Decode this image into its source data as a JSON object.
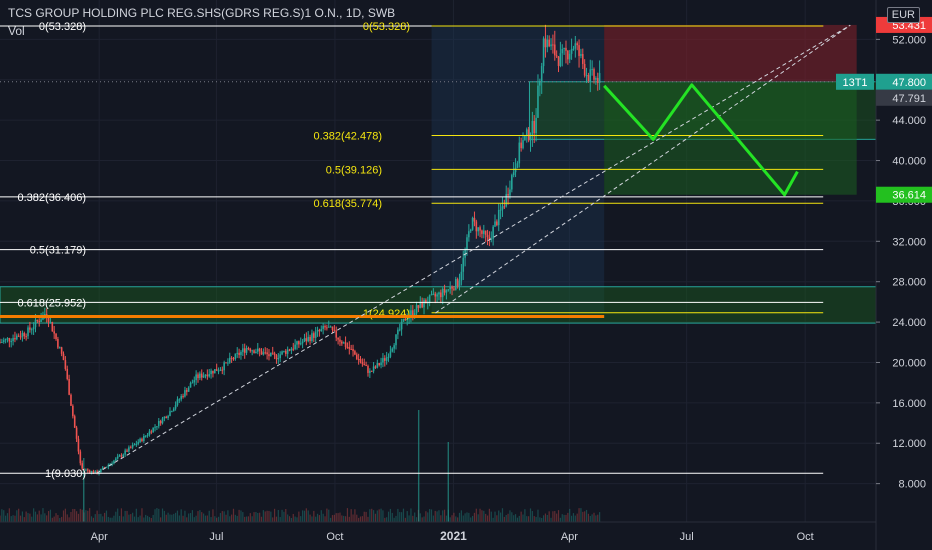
{
  "header": {
    "title": "TCS GROUP HOLDING PLC REG.SHS(GDRS REG.S)1 O.N., 1D, SWB",
    "volume_label": "Vol",
    "currency": "EUR"
  },
  "colors": {
    "background": "#131722",
    "up": "#26a69a",
    "down": "#ef5350",
    "fib_white": "#ffffff",
    "fib_yellow": "#f5e60f",
    "zone_green": "#1b5e20",
    "zone_red": "#7b1f2a",
    "trend_dashed": "#d1d4dc",
    "projection": "#24e324",
    "support_orange": "#f57c00"
  },
  "chart_data": {
    "type": "candlestick",
    "y_axis": {
      "ticks": [
        "52.000",
        "48.000",
        "44.000",
        "40.000",
        "36.000",
        "32.000",
        "28.000",
        "24.000",
        "20.000",
        "16.000",
        "12.000",
        "8.000"
      ],
      "tick_values": [
        52,
        48,
        44,
        40,
        36,
        32,
        28,
        24,
        20,
        16,
        12,
        8
      ],
      "range": [
        4.2,
        55.9
      ]
    },
    "x_axis": {
      "labels": [
        "Apr",
        "Jul",
        "Oct",
        "2021",
        "Apr",
        "Jul",
        "Oct"
      ],
      "dates": [
        "2020-04-01",
        "2020-07-01",
        "2020-10-01",
        "2021-01-01",
        "2021-04-01",
        "2021-07-01",
        "2021-10-01"
      ],
      "range": [
        "2020-01-15",
        "2021-11-25"
      ]
    },
    "price_path": [
      [
        "2020-01-15",
        22.0
      ],
      [
        "2020-02-05",
        23.0
      ],
      [
        "2020-02-20",
        25.0
      ],
      [
        "2020-03-05",
        20.0
      ],
      [
        "2020-03-18",
        9.5
      ],
      [
        "2020-03-30",
        9.03
      ],
      [
        "2020-04-15",
        10.5
      ],
      [
        "2020-05-05",
        12.5
      ],
      [
        "2020-05-25",
        15.0
      ],
      [
        "2020-06-15",
        18.5
      ],
      [
        "2020-07-05",
        19.5
      ],
      [
        "2020-07-25",
        21.5
      ],
      [
        "2020-08-15",
        20.5
      ],
      [
        "2020-09-05",
        22.0
      ],
      [
        "2020-09-25",
        23.5
      ],
      [
        "2020-10-15",
        21.0
      ],
      [
        "2020-10-28",
        19.0
      ],
      [
        "2020-11-10",
        20.5
      ],
      [
        "2020-11-25",
        24.5
      ],
      [
        "2020-12-10",
        26.0
      ],
      [
        "2020-12-25",
        27.0
      ],
      [
        "2021-01-05",
        28.0
      ],
      [
        "2021-01-15",
        34.0
      ],
      [
        "2021-01-28",
        32.0
      ],
      [
        "2021-02-10",
        36.0
      ],
      [
        "2021-02-22",
        41.5
      ],
      [
        "2021-03-05",
        43.5
      ],
      [
        "2021-03-12",
        52.0
      ],
      [
        "2021-03-25",
        50.0
      ],
      [
        "2021-04-05",
        51.5
      ],
      [
        "2021-04-15",
        48.5
      ],
      [
        "2021-04-25",
        47.8
      ]
    ],
    "last_price_label": "47.791",
    "price_labels": [
      {
        "text": "53.431",
        "value": 53.431,
        "color": "#ef3b3b"
      },
      {
        "text": "47.800",
        "value": 47.8,
        "color": "#1fa08f",
        "tag": "13T1"
      },
      {
        "text": "36.614",
        "value": 36.614,
        "color": "#23c01f"
      }
    ],
    "volume_spikes": [
      [
        "2020-12-05",
        0.7
      ],
      [
        "2020-12-28",
        0.5
      ],
      [
        "2020-03-20",
        0.4
      ]
    ],
    "fib_white": {
      "from_date": "2020-01-15",
      "to_date": "2021-10-15",
      "levels": [
        {
          "label": "0(53.328)",
          "value": 53.328
        },
        {
          "label": "0.382(36.406)",
          "value": 36.406
        },
        {
          "label": "0.5(31.179)",
          "value": 31.179
        },
        {
          "label": "0.618(25.952)",
          "value": 25.952
        },
        {
          "label": "1(9.030)",
          "value": 9.03
        }
      ]
    },
    "fib_yellow": {
      "from_date": "2020-12-15",
      "to_date": "2021-10-15",
      "levels": [
        {
          "label": "0(53.328)",
          "value": 53.328
        },
        {
          "label": "0.382(42.478)",
          "value": 42.478
        },
        {
          "label": "0.5(39.126)",
          "value": 39.126
        },
        {
          "label": "0.618(35.774)",
          "value": 35.774
        },
        {
          "label": "1(24.924)",
          "value": 24.924
        }
      ]
    },
    "zones": [
      {
        "from": "2020-01-15",
        "to": "2021-11-25",
        "top": 27.5,
        "bottom": 23.9,
        "kind": "support"
      },
      {
        "from": "2021-03-01",
        "to": "2021-11-25",
        "top": 47.8,
        "bottom": 42.1,
        "kind": "support"
      },
      {
        "from": "2021-04-28",
        "to": "2021-11-10",
        "top": 47.8,
        "bottom": 36.614,
        "kind": "target"
      },
      {
        "from": "2021-04-28",
        "to": "2021-11-10",
        "top": 53.431,
        "bottom": 47.8,
        "kind": "stop"
      }
    ],
    "trend_lines": [
      [
        [
          "2020-03-30",
          9.03
        ],
        [
          "2021-11-05",
          53.4
        ]
      ],
      [
        [
          "2020-12-18",
          24.9
        ],
        [
          "2021-11-05",
          53.4
        ]
      ]
    ],
    "projection_path": [
      [
        "2021-04-28",
        47.4
      ],
      [
        "2021-06-05",
        42.1
      ],
      [
        "2021-07-05",
        47.5
      ],
      [
        "2021-09-15",
        36.614
      ],
      [
        "2021-09-25",
        38.9
      ]
    ]
  }
}
